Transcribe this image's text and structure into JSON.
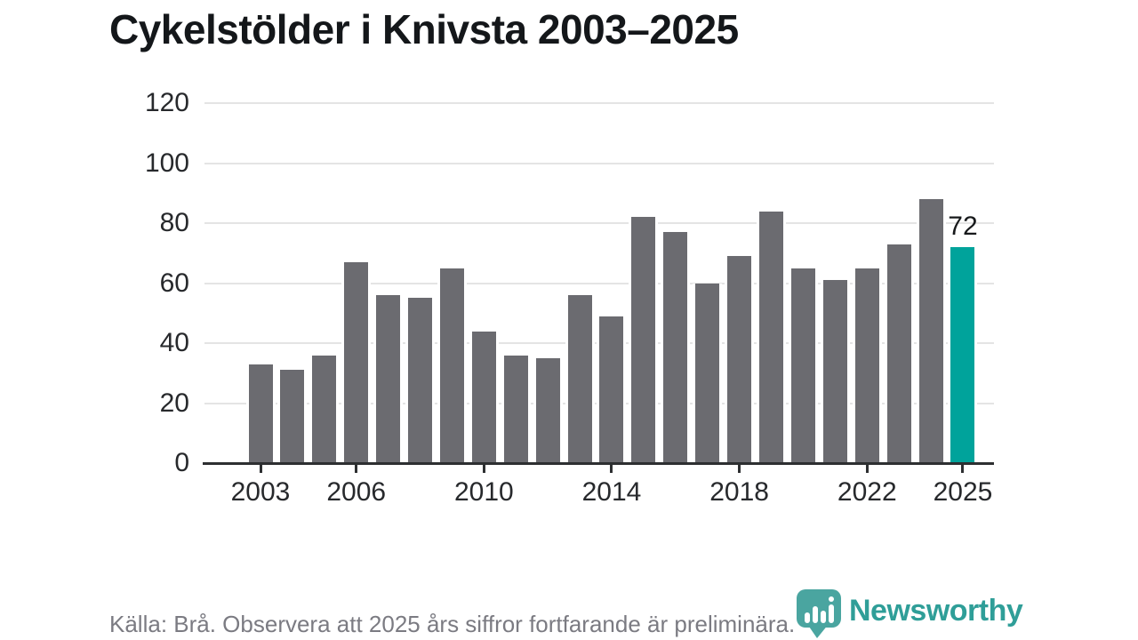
{
  "title": "Cykelstölder i Knivsta 2003–2025",
  "footer": {
    "source_note": "Källa: Brå. Observera att 2025 års siffror fortfarande är preliminära."
  },
  "brand": {
    "name": "Newsworthy",
    "icon": "newsworthy-speech-bubble-chart-icon",
    "icon_color": "#4aa5a0",
    "text_color": "#2f9e98"
  },
  "colors": {
    "bar": "#6b6b70",
    "highlight": "#00a39b",
    "gridline": "#e4e4e4",
    "axis": "#2d2f31",
    "axis_text": "#27292c",
    "title_text": "#14171a",
    "footer_text": "#7b7b82"
  },
  "chart_data": {
    "type": "bar",
    "title": "Cykelstölder i Knivsta 2003–2025",
    "categories": [
      2003,
      2004,
      2005,
      2006,
      2007,
      2008,
      2009,
      2010,
      2011,
      2012,
      2013,
      2014,
      2015,
      2016,
      2017,
      2018,
      2019,
      2020,
      2021,
      2022,
      2023,
      2024,
      2025
    ],
    "values": [
      33,
      31,
      36,
      67,
      56,
      55,
      65,
      44,
      36,
      35,
      56,
      49,
      82,
      77,
      60,
      69,
      84,
      65,
      61,
      65,
      73,
      88,
      72
    ],
    "highlight_index": 22,
    "highlight_label": "72",
    "x_tick_years": [
      2003,
      2006,
      2010,
      2014,
      2018,
      2022,
      2025
    ],
    "y_ticks": [
      0,
      20,
      40,
      60,
      80,
      100,
      120
    ],
    "ylim": [
      0,
      120
    ],
    "xlabel": "",
    "ylabel": "",
    "grid": "horizontal",
    "legend": "none"
  }
}
